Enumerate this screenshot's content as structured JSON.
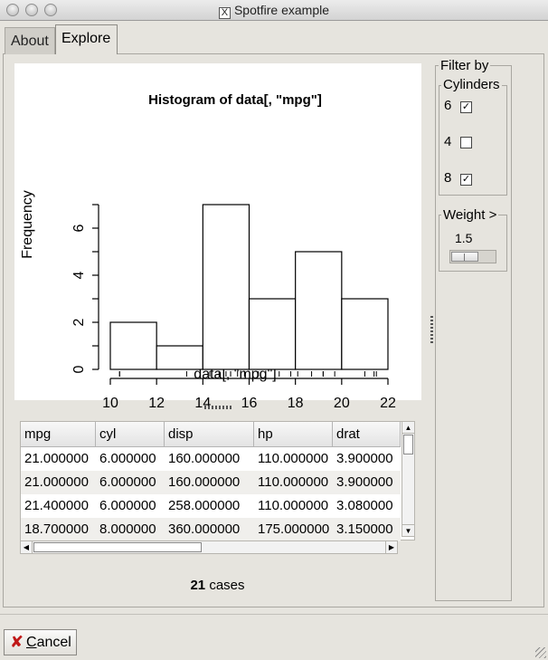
{
  "window": {
    "title": "Spotfire example",
    "x_glyph": "X"
  },
  "tabs": [
    {
      "label": "About"
    },
    {
      "label": "Explore"
    }
  ],
  "chart_data": {
    "type": "bar",
    "title": "Histogram of data[, \"mpg\"]",
    "xlabel": "data[, \"mpg\"]",
    "ylabel": "Frequency",
    "bins": [
      [
        10,
        12
      ],
      [
        12,
        14
      ],
      [
        14,
        16
      ],
      [
        16,
        18
      ],
      [
        18,
        20
      ],
      [
        20,
        22
      ]
    ],
    "values": [
      2,
      1,
      7,
      3,
      5,
      3
    ],
    "xticks": [
      "10",
      "12",
      "14",
      "16",
      "18",
      "20",
      "22"
    ],
    "yticks": [
      "0",
      "2",
      "4",
      "6"
    ],
    "xlim": [
      10,
      22
    ],
    "ylim": [
      0,
      7
    ],
    "rug": [
      10.4,
      10.4,
      13.3,
      14.3,
      14.7,
      15.0,
      15.2,
      15.2,
      15.5,
      15.8,
      16.4,
      17.3,
      17.8,
      18.1,
      18.7,
      19.2,
      19.2,
      19.7,
      21.0,
      21.4,
      21.5
    ],
    "grid": false
  },
  "table": {
    "columns": [
      "mpg",
      "cyl",
      "disp",
      "hp",
      "drat"
    ],
    "rows": [
      [
        "21.000000",
        "6.000000",
        "160.000000",
        "110.000000",
        "3.900000"
      ],
      [
        "21.000000",
        "6.000000",
        "160.000000",
        "110.000000",
        "3.900000"
      ],
      [
        "21.400000",
        "6.000000",
        "258.000000",
        "110.000000",
        "3.080000"
      ],
      [
        "18.700000",
        "8.000000",
        "360.000000",
        "175.000000",
        "3.150000"
      ]
    ]
  },
  "status": {
    "count": "21",
    "suffix": " cases"
  },
  "filter": {
    "title": "Filter by",
    "cylinders": {
      "label": "Cylinders",
      "options": [
        {
          "label": "6",
          "checked": true
        },
        {
          "label": "4",
          "checked": false
        },
        {
          "label": "8",
          "checked": true
        }
      ]
    },
    "weight": {
      "label": "Weight >",
      "value": "1.5",
      "level": 0.5
    }
  },
  "footer": {
    "cancel_label": "Cancel",
    "cancel_icon": "x-mark-icon"
  },
  "colors": {
    "window_bg": "#e6e4de",
    "cancel_icon": "#c01818"
  }
}
